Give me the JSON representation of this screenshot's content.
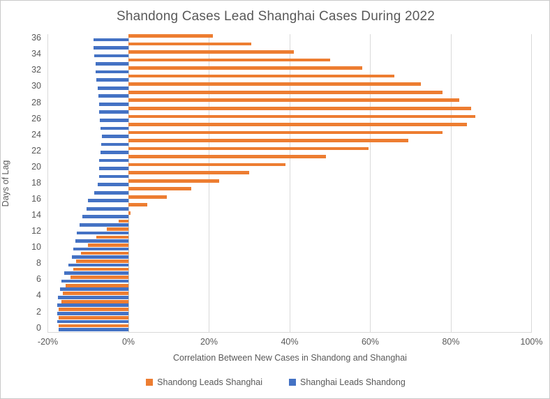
{
  "window": {
    "background": "#FFFFFF",
    "border_color": "#C9C9C9",
    "text_color": "#595959",
    "gridline_color": "#D9D9D9"
  },
  "chart_data": {
    "type": "bar",
    "orientation": "horizontal",
    "title": "Shandong Cases Lead Shanghai Cases During 2022",
    "xlabel": "Correlation Between New Cases in Shandong and Shanghai",
    "ylabel": "Days of Lag",
    "xlim": [
      -20,
      100
    ],
    "grid": "vertical",
    "legend_position": "bottom",
    "x_ticks": [
      {
        "value": -20,
        "label": "-20%"
      },
      {
        "value": 0,
        "label": "0%"
      },
      {
        "value": 20,
        "label": "20%"
      },
      {
        "value": 40,
        "label": "40%"
      },
      {
        "value": 60,
        "label": "60%"
      },
      {
        "value": 80,
        "label": "80%"
      },
      {
        "value": 100,
        "label": "100%"
      }
    ],
    "categories": [
      36,
      35,
      34,
      33,
      32,
      31,
      30,
      29,
      28,
      27,
      26,
      25,
      24,
      23,
      22,
      21,
      20,
      19,
      18,
      17,
      16,
      15,
      14,
      13,
      12,
      11,
      10,
      9,
      8,
      7,
      6,
      5,
      4,
      3,
      2,
      1,
      0
    ],
    "y_label_every": 2,
    "series": [
      {
        "name": "Shandong Leads Shanghai",
        "color": "#ED7D31",
        "values": [
          21.0,
          30.5,
          41.0,
          50.0,
          58.0,
          66.0,
          72.5,
          78.0,
          82.0,
          85.0,
          86.0,
          84.0,
          78.0,
          69.5,
          59.5,
          49.0,
          39.0,
          30.0,
          22.5,
          15.5,
          9.5,
          4.6,
          0.5,
          -2.5,
          -5.4,
          -7.9,
          -10.0,
          -11.8,
          -13.0,
          -13.7,
          -14.4,
          -15.5,
          -16.2,
          -16.6,
          -17.4,
          -17.4,
          -17.3
        ]
      },
      {
        "name": "Shanghai Leads Shandong",
        "color": "#4472C4",
        "values": [
          -8.7,
          -8.6,
          -8.5,
          -8.1,
          -8.1,
          -7.9,
          -7.6,
          -7.4,
          -7.3,
          -7.2,
          -7.1,
          -6.9,
          -6.6,
          -6.7,
          -7.0,
          -7.2,
          -7.2,
          -7.3,
          -7.7,
          -8.4,
          -10.0,
          -10.4,
          -11.4,
          -12.2,
          -12.9,
          -13.2,
          -13.6,
          -14.1,
          -14.9,
          -16.0,
          -16.6,
          -17.0,
          -17.5,
          -17.7,
          -17.6,
          -17.6,
          -17.3
        ]
      }
    ]
  }
}
